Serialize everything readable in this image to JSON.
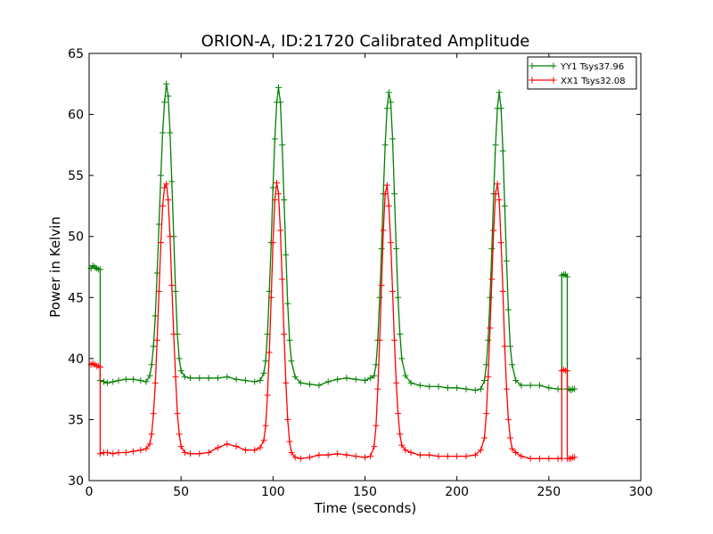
{
  "chart_data": {
    "type": "line",
    "title": "ORION-A, ID:21720 Calibrated Amplitude",
    "xlabel": "Time (seconds)",
    "ylabel": "Power in Kelvin",
    "xlim": [
      0,
      300
    ],
    "ylim": [
      30,
      65
    ],
    "xticks": [
      0,
      50,
      100,
      150,
      200,
      250,
      300
    ],
    "yticks": [
      30,
      35,
      40,
      45,
      50,
      55,
      60,
      65
    ],
    "grid": false,
    "legend_position": "top-right",
    "markers": "plus",
    "series": [
      {
        "name": "YY1 Tsys37.96",
        "color": "#008000",
        "x": [
          1,
          2,
          3,
          4,
          5,
          6,
          6,
          8,
          10,
          13,
          16,
          20,
          24,
          28,
          31,
          33,
          34,
          35,
          36,
          37,
          38,
          39,
          40,
          41,
          42,
          43,
          44,
          45,
          46,
          47,
          48,
          49,
          50,
          52,
          55,
          60,
          65,
          70,
          75,
          80,
          85,
          90,
          93,
          95,
          96,
          97,
          98,
          99,
          100,
          101,
          102,
          103,
          104,
          105,
          106,
          107,
          108,
          109,
          110,
          112,
          115,
          120,
          125,
          130,
          135,
          140,
          145,
          150,
          153,
          155,
          156,
          157,
          158,
          159,
          160,
          161,
          162,
          163,
          164,
          165,
          166,
          167,
          168,
          169,
          170,
          172,
          175,
          180,
          185,
          190,
          195,
          200,
          205,
          210,
          213,
          215,
          216,
          217,
          218,
          219,
          220,
          221,
          222,
          223,
          224,
          225,
          226,
          227,
          228,
          229,
          230,
          232,
          235,
          240,
          245,
          250,
          255,
          257,
          257,
          258,
          259,
          260,
          260,
          261,
          262,
          263,
          264
        ],
        "y": [
          47.4,
          47.6,
          47.5,
          47.4,
          47.3,
          47.3,
          38.2,
          38.1,
          38.0,
          38.1,
          38.2,
          38.3,
          38.3,
          38.2,
          38.1,
          38.6,
          39.5,
          41.0,
          43.5,
          47.0,
          51.0,
          55.0,
          58.5,
          61.0,
          62.5,
          61.5,
          58.5,
          54.5,
          50.0,
          45.5,
          42.0,
          40.0,
          39.0,
          38.5,
          38.4,
          38.4,
          38.4,
          38.4,
          38.5,
          38.3,
          38.2,
          38.1,
          38.2,
          38.8,
          39.8,
          42.0,
          45.5,
          49.5,
          54.0,
          58.0,
          61.0,
          62.2,
          61.0,
          57.5,
          53.0,
          48.5,
          44.5,
          41.5,
          39.8,
          38.5,
          38.0,
          37.9,
          37.8,
          38.1,
          38.3,
          38.4,
          38.3,
          38.2,
          38.4,
          38.6,
          39.5,
          41.5,
          45.0,
          49.0,
          53.5,
          57.5,
          60.5,
          61.8,
          61.0,
          58.0,
          53.5,
          49.0,
          45.0,
          42.0,
          40.0,
          38.6,
          38.0,
          37.8,
          37.7,
          37.7,
          37.6,
          37.6,
          37.5,
          37.4,
          37.5,
          38.2,
          39.5,
          41.5,
          45.0,
          49.0,
          53.5,
          57.5,
          60.5,
          61.8,
          60.5,
          57.0,
          52.5,
          48.0,
          44.0,
          41.0,
          39.5,
          38.2,
          37.8,
          37.8,
          37.8,
          37.6,
          37.5,
          37.5,
          46.8,
          46.9,
          46.9,
          46.7,
          37.5,
          37.5,
          37.4,
          37.5,
          37.5
        ]
      },
      {
        "name": "XX1 Tsys32.08",
        "color": "#ff0000",
        "x": [
          1,
          2,
          3,
          4,
          5,
          6,
          6,
          8,
          10,
          13,
          16,
          20,
          24,
          28,
          31,
          33,
          34,
          35,
          36,
          37,
          38,
          39,
          40,
          41,
          42,
          43,
          44,
          45,
          46,
          47,
          48,
          49,
          50,
          52,
          55,
          60,
          65,
          70,
          75,
          80,
          85,
          90,
          93,
          95,
          96,
          97,
          98,
          99,
          100,
          101,
          102,
          103,
          104,
          105,
          106,
          107,
          108,
          109,
          110,
          112,
          115,
          120,
          125,
          130,
          135,
          140,
          145,
          150,
          153,
          155,
          156,
          157,
          158,
          159,
          160,
          161,
          162,
          163,
          164,
          165,
          166,
          167,
          168,
          169,
          170,
          172,
          175,
          180,
          185,
          190,
          195,
          200,
          205,
          210,
          213,
          215,
          216,
          217,
          218,
          219,
          220,
          221,
          222,
          223,
          224,
          225,
          226,
          227,
          228,
          229,
          230,
          232,
          235,
          240,
          245,
          250,
          255,
          257,
          257,
          258,
          259,
          260,
          260,
          261,
          262,
          263,
          264
        ],
        "y": [
          39.5,
          39.6,
          39.5,
          39.4,
          39.4,
          39.3,
          32.2,
          32.3,
          32.3,
          32.2,
          32.3,
          32.3,
          32.4,
          32.5,
          32.6,
          33.0,
          33.8,
          35.5,
          38.0,
          41.5,
          45.5,
          49.5,
          52.5,
          54.0,
          54.3,
          53.0,
          50.0,
          46.0,
          42.0,
          38.5,
          35.5,
          33.8,
          32.8,
          32.3,
          32.2,
          32.2,
          32.3,
          32.7,
          33.0,
          32.8,
          32.5,
          32.5,
          32.7,
          33.3,
          34.5,
          37.0,
          40.5,
          45.0,
          49.5,
          53.0,
          54.4,
          53.5,
          50.5,
          46.5,
          42.0,
          38.0,
          35.0,
          33.2,
          32.3,
          31.9,
          31.8,
          31.9,
          32.1,
          32.1,
          32.2,
          32.1,
          32.0,
          31.9,
          32.0,
          32.8,
          34.5,
          37.5,
          41.5,
          46.0,
          50.5,
          53.5,
          54.2,
          52.5,
          49.5,
          45.5,
          41.5,
          38.0,
          35.5,
          33.8,
          32.9,
          32.5,
          32.3,
          32.1,
          32.1,
          32.0,
          32.0,
          32.0,
          32.0,
          32.1,
          32.5,
          33.5,
          35.5,
          38.5,
          42.5,
          46.5,
          50.5,
          53.5,
          54.3,
          53.0,
          49.5,
          45.5,
          41.0,
          37.5,
          35.0,
          33.5,
          32.6,
          32.3,
          32.0,
          31.8,
          31.8,
          31.8,
          31.8,
          31.8,
          39.0,
          39.1,
          39.0,
          39.0,
          31.8,
          31.8,
          31.8,
          31.9,
          31.9
        ]
      }
    ]
  }
}
